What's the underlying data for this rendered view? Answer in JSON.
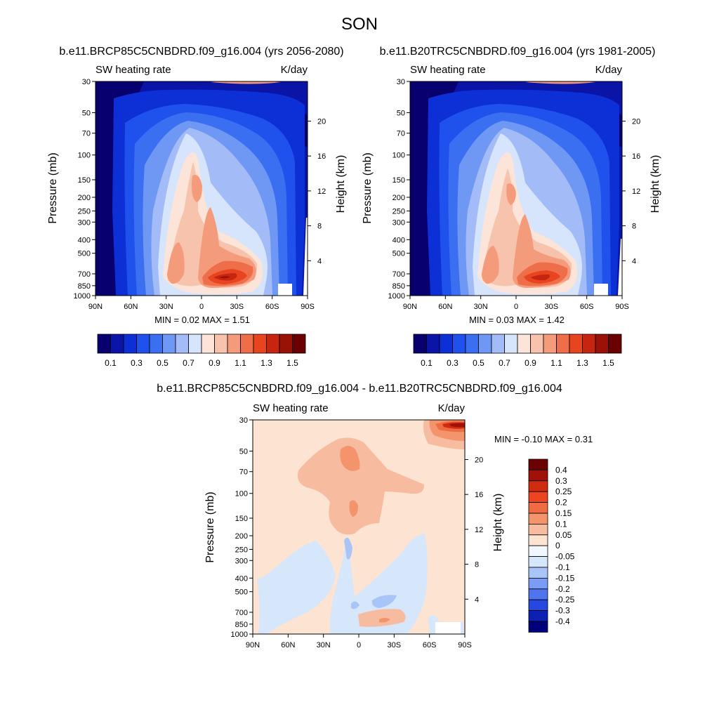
{
  "page_title": "SON",
  "chart_data": [
    {
      "type": "heatmap",
      "panel": "top-left",
      "title": "b.e11.BRCP85C5CNBDRD.f09_g16.004 (yrs 2056-2080)",
      "left_label": "SW heating rate",
      "right_label": "K/day",
      "xlabel": "",
      "ylabel": "Pressure (mb)",
      "ylabel_right": "Height (km)",
      "x_ticks": [
        "90N",
        "60N",
        "30N",
        "0",
        "30S",
        "60S",
        "90S"
      ],
      "y_ticks": [
        30,
        50,
        70,
        100,
        150,
        200,
        250,
        300,
        400,
        500,
        700,
        850,
        1000
      ],
      "height_ticks": [
        20,
        16,
        12,
        8,
        4
      ],
      "ylim": [
        30,
        1000
      ],
      "xlim": [
        90,
        -90
      ],
      "stats": "MIN =   0.02  MAX =   1.51",
      "min": 0.02,
      "max": 1.51,
      "colorbar": {
        "orientation": "horizontal",
        "levels": [
          0.1,
          0.2,
          0.3,
          0.4,
          0.5,
          0.6,
          0.7,
          0.8,
          0.9,
          1.0,
          1.1,
          1.2,
          1.3,
          1.4,
          1.5
        ],
        "labels": [
          "0.1",
          "0.3",
          "0.5",
          "0.7",
          "0.9",
          "1.1",
          "1.3",
          "1.5"
        ]
      }
    },
    {
      "type": "heatmap",
      "panel": "top-right",
      "title": "b.e11.B20TRC5CNBDRD.f09_g16.004 (yrs 1981-2005)",
      "left_label": "SW heating rate",
      "right_label": "K/day",
      "xlabel": "",
      "ylabel": "Pressure (mb)",
      "ylabel_right": "Height (km)",
      "x_ticks": [
        "90N",
        "60N",
        "30N",
        "0",
        "30S",
        "60S",
        "90S"
      ],
      "y_ticks": [
        30,
        50,
        70,
        100,
        150,
        200,
        250,
        300,
        400,
        500,
        700,
        850,
        1000
      ],
      "height_ticks": [
        20,
        16,
        12,
        8,
        4
      ],
      "ylim": [
        30,
        1000
      ],
      "xlim": [
        90,
        -90
      ],
      "stats": "MIN =   0.03  MAX =   1.42",
      "min": 0.03,
      "max": 1.42,
      "colorbar": {
        "orientation": "horizontal",
        "levels": [
          0.1,
          0.2,
          0.3,
          0.4,
          0.5,
          0.6,
          0.7,
          0.8,
          0.9,
          1.0,
          1.1,
          1.2,
          1.3,
          1.4,
          1.5
        ],
        "labels": [
          "0.1",
          "0.3",
          "0.5",
          "0.7",
          "0.9",
          "1.1",
          "1.3",
          "1.5"
        ]
      }
    },
    {
      "type": "heatmap",
      "panel": "bottom",
      "title": "b.e11.BRCP85C5CNBDRD.f09_g16.004 - b.e11.B20TRC5CNBDRD.f09_g16.004",
      "left_label": "SW heating rate",
      "right_label": "K/day",
      "xlabel": "",
      "ylabel": "Pressure (mb)",
      "ylabel_right": "Height (km)",
      "x_ticks": [
        "90N",
        "60N",
        "30N",
        "0",
        "30S",
        "60S",
        "90S"
      ],
      "y_ticks": [
        30,
        50,
        70,
        100,
        150,
        200,
        250,
        300,
        400,
        500,
        700,
        850,
        1000
      ],
      "height_ticks": [
        20,
        16,
        12,
        8,
        4
      ],
      "ylim": [
        30,
        1000
      ],
      "xlim": [
        90,
        -90
      ],
      "stats": "MIN =  -0.10  MAX =   0.31",
      "min": -0.1,
      "max": 0.31,
      "colorbar": {
        "orientation": "vertical",
        "labels": [
          "0.4",
          "0.3",
          "0.25",
          "0.2",
          "0.15",
          "0.1",
          "0.05",
          "0",
          "-0.05",
          "-0.1",
          "-0.15",
          "-0.2",
          "-0.25",
          "-0.3",
          "-0.4"
        ]
      }
    }
  ],
  "colors": {
    "abs_scale": [
      "#08006e",
      "#0a14a6",
      "#0d2fd6",
      "#1f52ec",
      "#3a6ff2",
      "#6f98f5",
      "#a3bcf8",
      "#d6e5fb",
      "#fce5d8",
      "#f8c3ac",
      "#f49b7b",
      "#ef6e4a",
      "#e84420",
      "#c62610",
      "#9a1206",
      "#6a0000"
    ],
    "diff_scale": [
      "#6a0000",
      "#a01207",
      "#cf2c10",
      "#ec4520",
      "#f06a42",
      "#f3946c",
      "#f7bba0",
      "#fde4d2",
      "#f2f6ff",
      "#d6e6fb",
      "#a9c4f7",
      "#7b9cf4",
      "#4f74ee",
      "#2448e0",
      "#0c21b4",
      "#00007a"
    ],
    "missing": "#ffffff"
  }
}
